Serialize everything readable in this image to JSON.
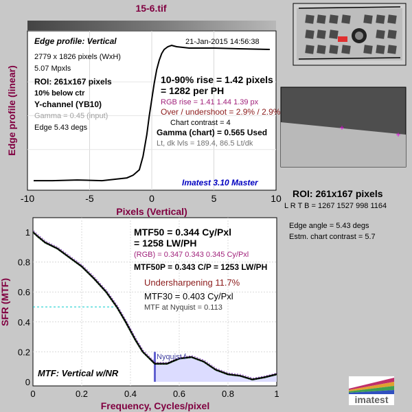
{
  "file_title": "15-6.tif",
  "edge_profile": {
    "title": "Edge profile: Vertical",
    "timestamp": "21-Jan-2015 14:56:38",
    "info": [
      "2779 x 1826 pixels (WxH)",
      "5.07 Mpxls"
    ],
    "roi": "ROI:  261x167 pixels",
    "region": "10% below ctr",
    "channel": "Y-channel  (YB10)",
    "gamma_input": "Gamma = 0.45 (input)",
    "edge_angle": "Edge 5.43 degs",
    "rise": "10-90% rise = 1.42 pixels",
    "per_ph": "= 1282 per PH",
    "rgb_rise": "RGB rise = 1.41  1.44  1.39 px",
    "overshoot": "Over / undershoot = 2.9% / 2.9%",
    "chart_contrast": "Chart contrast = 4",
    "gamma_chart": "Gamma (chart) = 0.565  Used",
    "levels": "Lt, dk lvls = 189.4, 86.5   Lt/dk",
    "version": "Imatest 3.10 Master",
    "ylabel": "Edge profile (linear)",
    "xlabel": "Pixels (Vertical)"
  },
  "mtf": {
    "mtf50": "MTF50 = 0.344 Cy/Pxl",
    "lwph": "= 1258 LW/PH",
    "rgb": "(RGB) = 0.347   0.343   0.345 Cy/Pxl",
    "mtf50p": "MTF50P = 0.343 C/P = 1253 LW/PH",
    "undersharp": "Undersharpening 11.7%",
    "mtf30": "MTF30 = 0.403 Cy/Pxl",
    "nyquist_mtf": "MTF at Nyquist = 0.113",
    "nyquist_label": "Nyquist f",
    "label": "MTF: Vertical w/NR",
    "ylabel": "SFR (MTF)",
    "xlabel": "Frequency, Cycles/pixel"
  },
  "roi_panel": {
    "title": "ROI:  261x167 pixels",
    "lrtb": "L R  T B = 1267 1527   998 1164",
    "edge_angle": "Edge angle = 5.43 degs",
    "contrast": "Estm. chart contrast = 5.7"
  },
  "logo": "imatest",
  "colors": {
    "title": "#800040",
    "axis_label": "#800040",
    "rgb_text": "#a0207a",
    "overshoot": "#8b1a1a",
    "version": "#0000c0"
  },
  "chart_data": [
    {
      "type": "line",
      "title": "Edge profile: Vertical",
      "xlabel": "Pixels (Vertical)",
      "ylabel": "Edge profile (linear)",
      "xlim": [
        -10,
        10
      ],
      "xticks": [
        -10,
        -5,
        0,
        5,
        10
      ],
      "grid": true,
      "series": [
        {
          "x": [
            -9.5,
            -8,
            -6,
            -4,
            -3,
            -2,
            -1.5,
            -1,
            -0.7,
            -0.4,
            -0.2,
            0,
            0.2,
            0.4,
            0.6,
            0.8,
            1,
            1.3,
            1.6,
            2,
            3,
            5,
            7,
            9.5
          ],
          "y": [
            0.02,
            0.02,
            0.025,
            0.02,
            0.03,
            0.04,
            0.06,
            0.1,
            0.2,
            0.36,
            0.5,
            0.62,
            0.74,
            0.84,
            0.91,
            0.96,
            0.99,
            1.01,
            1.02,
            1.01,
            1.0,
            1.0,
            0.995,
            0.99
          ]
        }
      ]
    },
    {
      "type": "line",
      "title": "",
      "xlabel": "Frequency, Cycles/pixel",
      "ylabel": "SFR (MTF)",
      "xlim": [
        0,
        1
      ],
      "ylim": [
        0,
        1.05
      ],
      "xticks": [
        0,
        0.2,
        0.4,
        0.6,
        0.8,
        1
      ],
      "yticks": [
        0,
        0.2,
        0.4,
        0.6,
        0.8,
        1
      ],
      "grid": true,
      "nyquist": 0.5,
      "mtf50_level": 0.5,
      "series": [
        {
          "x": [
            0,
            0.02,
            0.05,
            0.1,
            0.15,
            0.2,
            0.25,
            0.3,
            0.344,
            0.38,
            0.42,
            0.45,
            0.5,
            0.55,
            0.6,
            0.65,
            0.7,
            0.75,
            0.8,
            0.85,
            0.9,
            0.95,
            1.0
          ],
          "y": [
            1.0,
            0.97,
            0.93,
            0.89,
            0.83,
            0.77,
            0.69,
            0.6,
            0.5,
            0.4,
            0.28,
            0.2,
            0.12,
            0.12,
            0.155,
            0.165,
            0.135,
            0.08,
            0.05,
            0.04,
            0.015,
            0.03,
            0.05
          ]
        }
      ]
    }
  ]
}
